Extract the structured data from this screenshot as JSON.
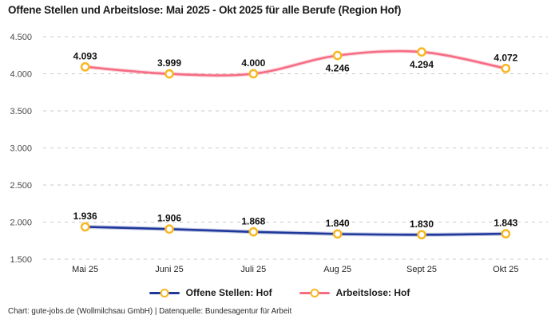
{
  "title": "Offene Stellen und Arbeitslose: Mai 2025 - Okt 2025 für alle Berufe (Region Hof)",
  "footer": "Chart: gute-jobs.de (Wollmilchsau GmbH) | Datenquelle: Bundesagentur für Arbeit",
  "colors": {
    "offene_stellen": "#20389b",
    "arbeitslose": "#f56d84",
    "marker_ring": "#f8b723",
    "marker_fill": "#ffffff",
    "grid": "#c9c9c9"
  },
  "chart_data": {
    "type": "line",
    "title": "Offene Stellen und Arbeitslose: Mai 2025 - Okt 2025 für alle Berufe (Region Hof)",
    "categories": [
      "Mai 25",
      "Juni 25",
      "Juli 25",
      "Aug 25",
      "Sept 25",
      "Okt 25"
    ],
    "series": [
      {
        "name": "Offene Stellen: Hof",
        "values": [
          1936,
          1906,
          1868,
          1840,
          1830,
          1843
        ],
        "labels": [
          "1.936",
          "1.906",
          "1.868",
          "1.840",
          "1.830",
          "1.843"
        ],
        "label_side": [
          "above",
          "above",
          "above",
          "above",
          "above",
          "above"
        ],
        "color_key": "offene_stellen"
      },
      {
        "name": "Arbeitslose: Hof",
        "values": [
          4093,
          3999,
          4000,
          4246,
          4294,
          4072
        ],
        "labels": [
          "4.093",
          "3.999",
          "4.000",
          "4.246",
          "4.294",
          "4.072"
        ],
        "label_side": [
          "above",
          "above",
          "above",
          "below",
          "below",
          "above"
        ],
        "color_key": "arbeitslose"
      }
    ],
    "y_ticks": [
      "4.500",
      "4.000",
      "3.500",
      "3.000",
      "2.500",
      "2.000",
      "1.500"
    ],
    "y_tick_values": [
      4500,
      4000,
      3500,
      3000,
      2500,
      2000,
      1500
    ],
    "ylim": [
      1500,
      4500
    ],
    "xlabel": "",
    "ylabel": "",
    "grid": "horizontal-dashed",
    "legend_position": "bottom",
    "marker": "ring-circle"
  }
}
